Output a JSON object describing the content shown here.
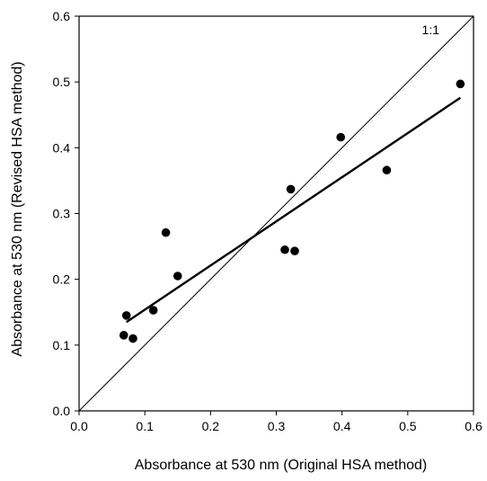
{
  "chart_data": {
    "type": "scatter",
    "title": "",
    "xlabel": "Absorbance at 530 nm (Original HSA method)",
    "ylabel": "Absorbance at 530 nm (Revised HSA method)",
    "xlim": [
      0.0,
      0.6
    ],
    "ylim": [
      0.0,
      0.6
    ],
    "x_ticks": [
      "0.0",
      "0.1",
      "0.2",
      "0.3",
      "0.4",
      "0.5",
      "0.6"
    ],
    "y_ticks": [
      "0.0",
      "0.1",
      "0.2",
      "0.3",
      "0.4",
      "0.5",
      "0.6"
    ],
    "grid": false,
    "series": [
      {
        "points": [
          {
            "x": 0.068,
            "y": 0.115
          },
          {
            "x": 0.072,
            "y": 0.145
          },
          {
            "x": 0.082,
            "y": 0.11
          },
          {
            "x": 0.113,
            "y": 0.153
          },
          {
            "x": 0.132,
            "y": 0.271
          },
          {
            "x": 0.15,
            "y": 0.205
          },
          {
            "x": 0.313,
            "y": 0.245
          },
          {
            "x": 0.322,
            "y": 0.337
          },
          {
            "x": 0.328,
            "y": 0.243
          },
          {
            "x": 0.398,
            "y": 0.416
          },
          {
            "x": 0.468,
            "y": 0.366
          },
          {
            "x": 0.58,
            "y": 0.497
          }
        ],
        "color": "#000000"
      }
    ],
    "regression_line": {
      "x": [
        0.072,
        0.58
      ],
      "y": [
        0.135,
        0.476
      ]
    },
    "reference_line": {
      "label": "1:1",
      "x": [
        0.0,
        0.6
      ],
      "y": [
        0.0,
        0.6
      ]
    }
  }
}
